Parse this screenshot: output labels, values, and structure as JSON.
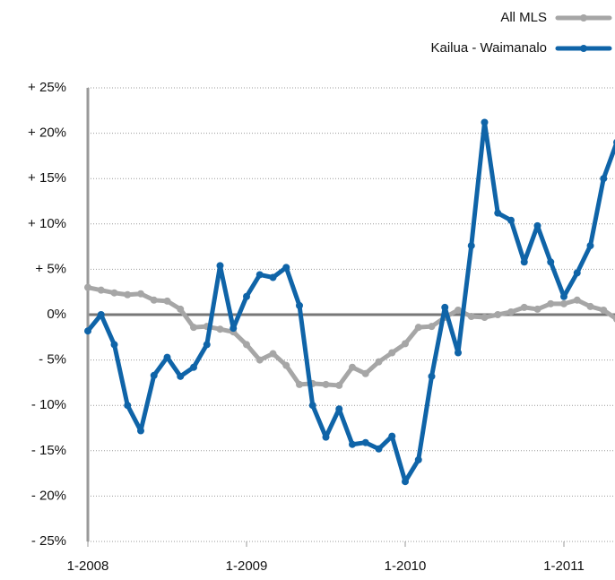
{
  "chart_data": {
    "type": "line",
    "categories": [
      "1-2008",
      null,
      null,
      null,
      null,
      null,
      null,
      null,
      null,
      null,
      null,
      null,
      "1-2009",
      null,
      null,
      null,
      null,
      null,
      null,
      null,
      null,
      null,
      null,
      null,
      "1-2010",
      null,
      null,
      null,
      null,
      null,
      null,
      null,
      null,
      null,
      null,
      null,
      "1-2011",
      null,
      null,
      null,
      null
    ],
    "series": [
      {
        "name": "All MLS",
        "color": "#a6a6a6",
        "values": [
          3,
          2.7,
          2.4,
          2.2,
          2.3,
          1.6,
          1.5,
          0.6,
          -1.4,
          -1.3,
          -1.6,
          -1.9,
          -3.3,
          -5,
          -4.3,
          -5.6,
          -7.7,
          -7.6,
          -7.7,
          -7.8,
          -5.8,
          -6.5,
          -5.2,
          -4.2,
          -3.2,
          -1.4,
          -1.3,
          -0.3,
          0.5,
          -0.2,
          -0.3,
          0,
          0.3,
          0.8,
          0.6,
          1.2,
          1.2,
          1.6,
          0.9,
          0.5,
          -0.5
        ]
      },
      {
        "name": "Kailua - Waimanalo",
        "color": "#0f64a8",
        "values": [
          -1.8,
          0,
          -3.3,
          -10,
          -12.8,
          -6.7,
          -4.7,
          -6.8,
          -5.8,
          -3.3,
          5.4,
          -1.5,
          2,
          4.4,
          4.1,
          5.2,
          1,
          -10,
          -13.5,
          -10.4,
          -14.3,
          -14.1,
          -14.8,
          -13.4,
          -18.4,
          -16,
          -6.8,
          0.8,
          -4.2,
          7.6,
          21.2,
          11.2,
          10.4,
          5.8,
          9.8,
          5.8,
          2,
          4.6,
          7.6,
          15,
          19
        ]
      }
    ],
    "ylim": [
      -25,
      25
    ],
    "yticks": [
      {
        "value": -25,
        "label": "- 25%"
      },
      {
        "value": -20,
        "label": "- 20%"
      },
      {
        "value": -15,
        "label": "- 15%"
      },
      {
        "value": -10,
        "label": "- 10%"
      },
      {
        "value": -5,
        "label": "- 5%"
      },
      {
        "value": 0,
        "label": "0%"
      },
      {
        "value": 5,
        "label": "+ 5%"
      },
      {
        "value": 10,
        "label": "+ 10%"
      },
      {
        "value": 15,
        "label": "+ 15%"
      },
      {
        "value": 20,
        "label": "+ 20%"
      },
      {
        "value": 25,
        "label": "+ 25%"
      }
    ],
    "grid": true,
    "legend": "top-right"
  }
}
